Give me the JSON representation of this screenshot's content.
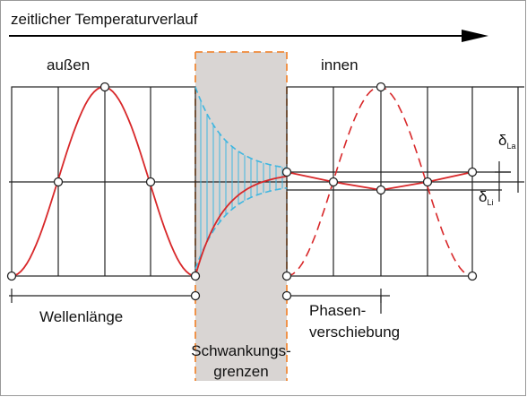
{
  "title": "zeitlicher Temperaturverlauf",
  "labels": {
    "outside": "außen",
    "inside": "innen",
    "wavelength": "Wellenlänge",
    "limits": [
      "Schwankungs-",
      "grenzen"
    ],
    "phase": [
      "Phasen-",
      "verschiebung"
    ],
    "delta_outside": {
      "symbol": "δ",
      "sub": "La"
    },
    "delta_inside": {
      "symbol": "δ",
      "sub": "Li"
    }
  }
}
